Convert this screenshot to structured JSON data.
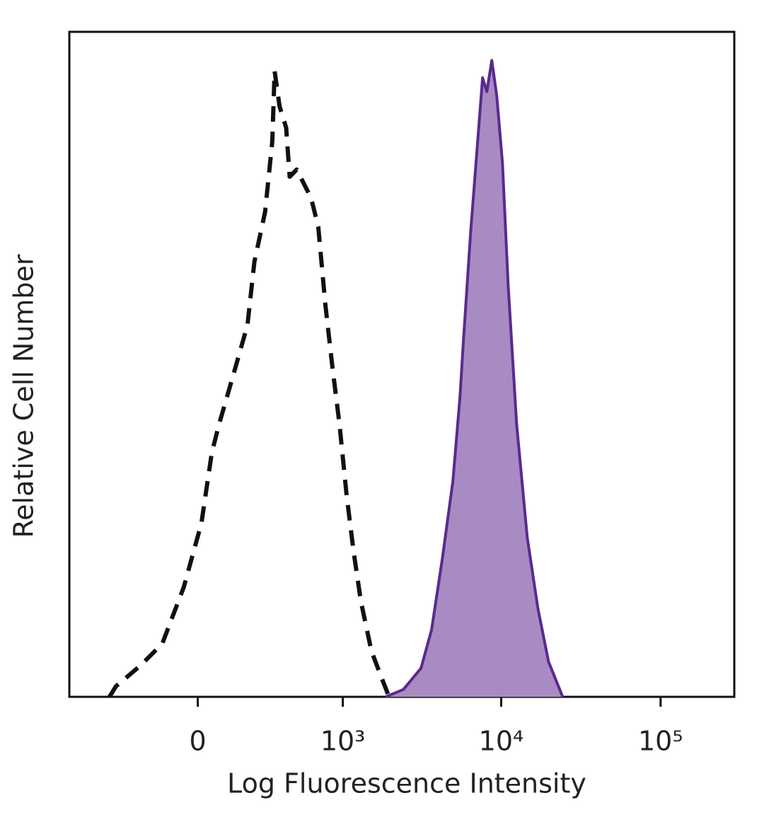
{
  "chart_data": {
    "type": "histogram-overlay",
    "xlabel": "Log Fluorescence Intensity",
    "ylabel": "Relative Cell Number",
    "xscale": "biexponential",
    "xlim": [
      -780,
      290000
    ],
    "xticks": [
      0,
      {
        "value": 1000,
        "label": "10³"
      },
      {
        "value": 10000,
        "label": "10⁴"
      },
      {
        "value": 100000,
        "label": "10⁵"
      }
    ],
    "ylim": [
      0,
      100
    ],
    "series": [
      {
        "color": "#111111",
        "style": "dashed",
        "fill": null,
        "x": [
          -413,
          -369,
          -228,
          -134,
          -51,
          13,
          51,
          78,
          134,
          195,
          228,
          283,
          324,
          338,
          369,
          413,
          438,
          492,
          618,
          690,
          769,
          857,
          952,
          1058,
          1174,
          1305,
          1524,
          1780,
          1972
        ],
        "values": [
          0,
          1.6,
          4.8,
          8.0,
          16.5,
          26.1,
          36.7,
          41.0,
          48.4,
          55.9,
          65.4,
          72.9,
          83.5,
          94.1,
          88.8,
          85.6,
          78.2,
          79.3,
          75.0,
          70.7,
          59.0,
          49.5,
          41.0,
          30.3,
          21.8,
          14.4,
          6.9,
          2.7,
          0
        ]
      },
      {
        "color": "#5a2a8e",
        "style": "solid",
        "fill": "#a98bc4",
        "x": [
          1875,
          2425,
          3134,
          3657,
          4268,
          4973,
          5514,
          5802,
          6425,
          7117,
          7647,
          8128,
          8732,
          9383,
          10191,
          11050,
          12500,
          14580,
          17000,
          19820,
          24300
        ],
        "values": [
          0,
          1.1,
          4.3,
          10.1,
          20.7,
          32.4,
          45.2,
          53.7,
          69.7,
          83.5,
          93.1,
          91.0,
          95.7,
          90.4,
          80.3,
          62.2,
          41.0,
          23.9,
          13.3,
          5.3,
          0
        ]
      }
    ]
  }
}
